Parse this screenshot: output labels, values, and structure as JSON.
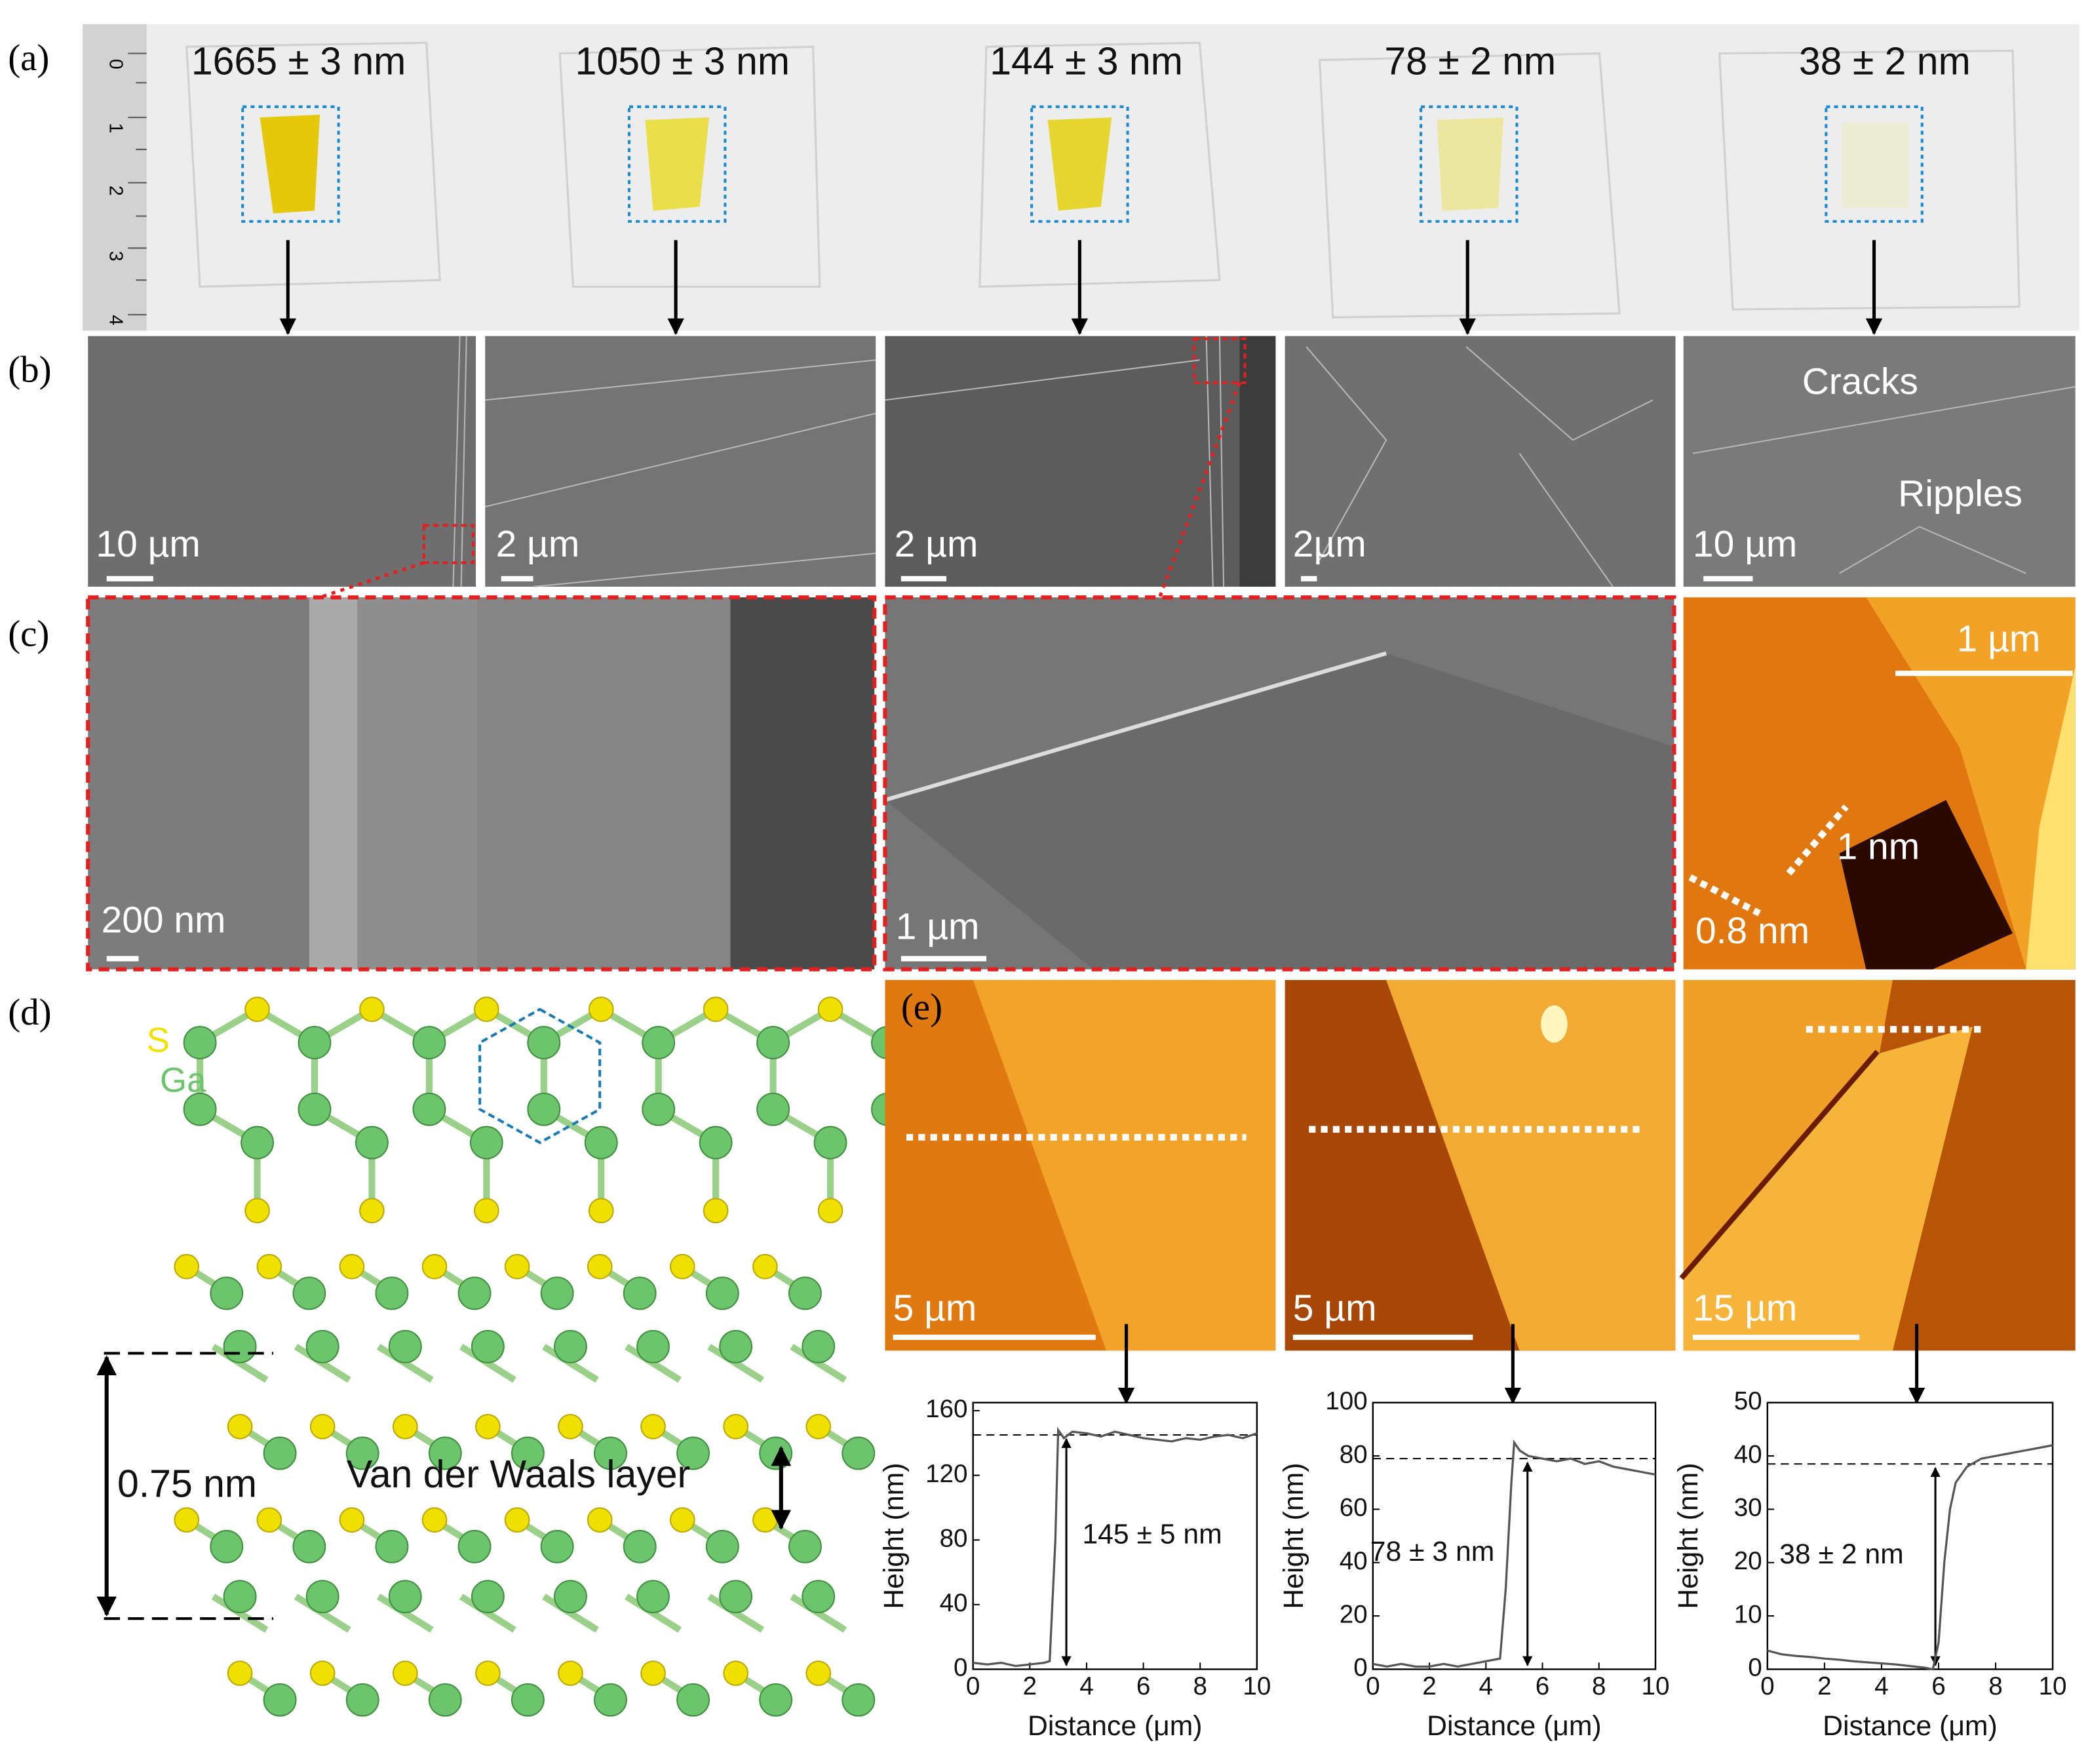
{
  "figure": {
    "panel_labels": [
      "(a)",
      "(b)",
      "(c)",
      "(d)",
      "(e)"
    ],
    "a": {
      "thicknesses": [
        "1665 ± 3 nm",
        "1050 ± 3 nm",
        "144 ± 3 nm",
        "78 ± 2 nm",
        "38 ± 2 nm"
      ],
      "ruler": [
        "0",
        "1",
        "2",
        "3",
        "4"
      ]
    },
    "b": {
      "scale_bars": [
        "10 µm",
        "2 µm",
        "2 µm",
        "2µm",
        "10 µm"
      ],
      "annotations": [
        "Cracks",
        "Ripples"
      ]
    },
    "c": {
      "scale_bars": [
        "200 nm",
        "1 µm",
        "1 µm"
      ],
      "annotations": [
        "1 nm",
        "0.8 nm"
      ]
    },
    "d": {
      "atoms": [
        "S",
        "Ga"
      ],
      "spacing": "0.75 nm",
      "layer": "Van der Waals layer"
    },
    "e": {
      "scale_bars": [
        "5 µm",
        "5 µm",
        "15 µm"
      ]
    }
  },
  "chart_data": [
    {
      "type": "line",
      "xlabel": "Distance (μm)",
      "ylabel": "Height (nm)",
      "x": [
        0,
        0.5,
        1,
        1.5,
        2,
        2.5,
        2.7,
        2.9,
        3.0,
        3.2,
        3.5,
        4,
        4.5,
        5,
        5.5,
        6,
        6.5,
        7,
        7.5,
        8,
        8.5,
        9,
        9.5,
        10
      ],
      "series": [
        {
          "color": "#555555",
          "values": [
            4,
            3,
            4,
            2,
            3,
            4,
            5,
            80,
            148,
            143,
            147,
            146,
            144,
            147,
            145,
            143,
            142,
            141,
            143,
            142,
            144,
            145,
            143,
            146
          ]
        }
      ],
      "xlim": [
        0,
        10
      ],
      "ylim": [
        0,
        165
      ],
      "xticks": [
        0,
        2,
        4,
        6,
        8,
        10
      ],
      "yticks": [
        0,
        40,
        80,
        120,
        160
      ],
      "reference_line": 145,
      "annotation": "145 ± 5 nm"
    },
    {
      "type": "line",
      "xlabel": "Distance (μm)",
      "ylabel": "Height (nm)",
      "x": [
        0,
        0.5,
        1,
        1.5,
        2,
        2.5,
        3,
        3.5,
        4,
        4.5,
        4.7,
        4.9,
        5.0,
        5.2,
        5.5,
        6,
        6.5,
        7,
        7.5,
        8,
        8.5,
        9,
        9.5,
        10
      ],
      "series": [
        {
          "color": "#555555",
          "values": [
            2,
            1,
            2,
            1,
            1,
            2,
            1,
            2,
            3,
            4,
            30,
            70,
            85,
            82,
            80,
            79,
            78,
            79,
            77,
            78,
            76,
            75,
            74,
            73
          ]
        }
      ],
      "xlim": [
        0,
        10
      ],
      "ylim": [
        0,
        100
      ],
      "xticks": [
        0,
        2,
        4,
        6,
        8,
        10
      ],
      "yticks": [
        0,
        20,
        40,
        60,
        80,
        100
      ],
      "reference_line": 79,
      "annotation": "78 ± 3 nm"
    },
    {
      "type": "line",
      "xlabel": "Distance (μm)",
      "ylabel": "Height (nm)",
      "x": [
        0,
        0.5,
        1,
        1.5,
        2,
        2.5,
        3,
        3.5,
        4,
        4.5,
        5,
        5.5,
        5.8,
        6,
        6.2,
        6.4,
        6.6,
        7,
        7.5,
        8,
        8.5,
        9,
        9.5,
        10
      ],
      "series": [
        {
          "color": "#555555",
          "values": [
            3.5,
            2.8,
            2.5,
            2.3,
            2,
            1.8,
            1.5,
            1.3,
            1.1,
            0.9,
            0.6,
            0.3,
            0,
            5,
            20,
            30,
            35,
            38,
            39.5,
            40,
            40.5,
            41,
            41.5,
            42
          ]
        }
      ],
      "xlim": [
        0,
        10
      ],
      "ylim": [
        0,
        50
      ],
      "xticks": [
        0,
        2,
        4,
        6,
        8,
        10
      ],
      "yticks": [
        0,
        10,
        20,
        30,
        40,
        50
      ],
      "reference_line": 38.5,
      "annotation": "38 ± 2 nm"
    }
  ]
}
